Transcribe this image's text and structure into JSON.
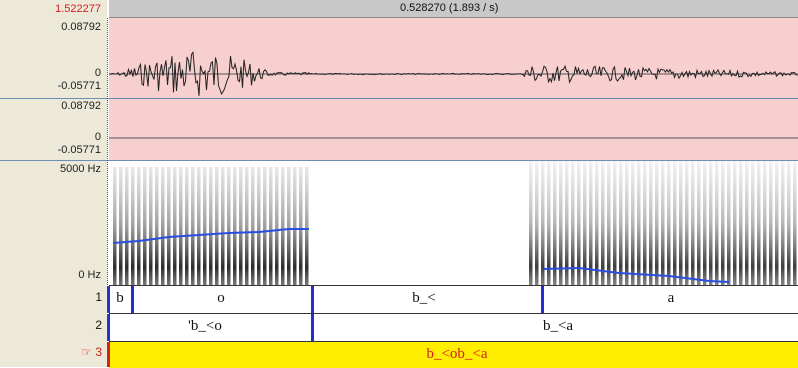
{
  "header": {
    "cursor_time": "1.522277",
    "selection": "0.528270 (1.893 / s)"
  },
  "waveform1": {
    "max": "0.08792",
    "zero": "0",
    "min": "-0.05771"
  },
  "waveform2": {
    "max": "0.08792",
    "zero": "0",
    "min": "-0.05771"
  },
  "spectrogram": {
    "top": "5000 Hz",
    "bottom": "0 Hz"
  },
  "tiers": [
    {
      "number": "1",
      "intervals": [
        "b",
        "o",
        "b_<",
        "a"
      ]
    },
    {
      "number": "2",
      "intervals": [
        "'b_<o",
        "b_<a"
      ]
    },
    {
      "number": "3",
      "icon": "☞",
      "intervals": [
        "b_<ob_<a"
      ]
    }
  ],
  "colors": {
    "selection_fill": "#f8cfcf",
    "tier3_fill": "#ffee00",
    "boundary": "#1f2fd0",
    "pitch": "#2a4fe0",
    "header_fill": "#c8c8c8"
  },
  "icons": {
    "pointer": "pointing-hand-icon"
  }
}
